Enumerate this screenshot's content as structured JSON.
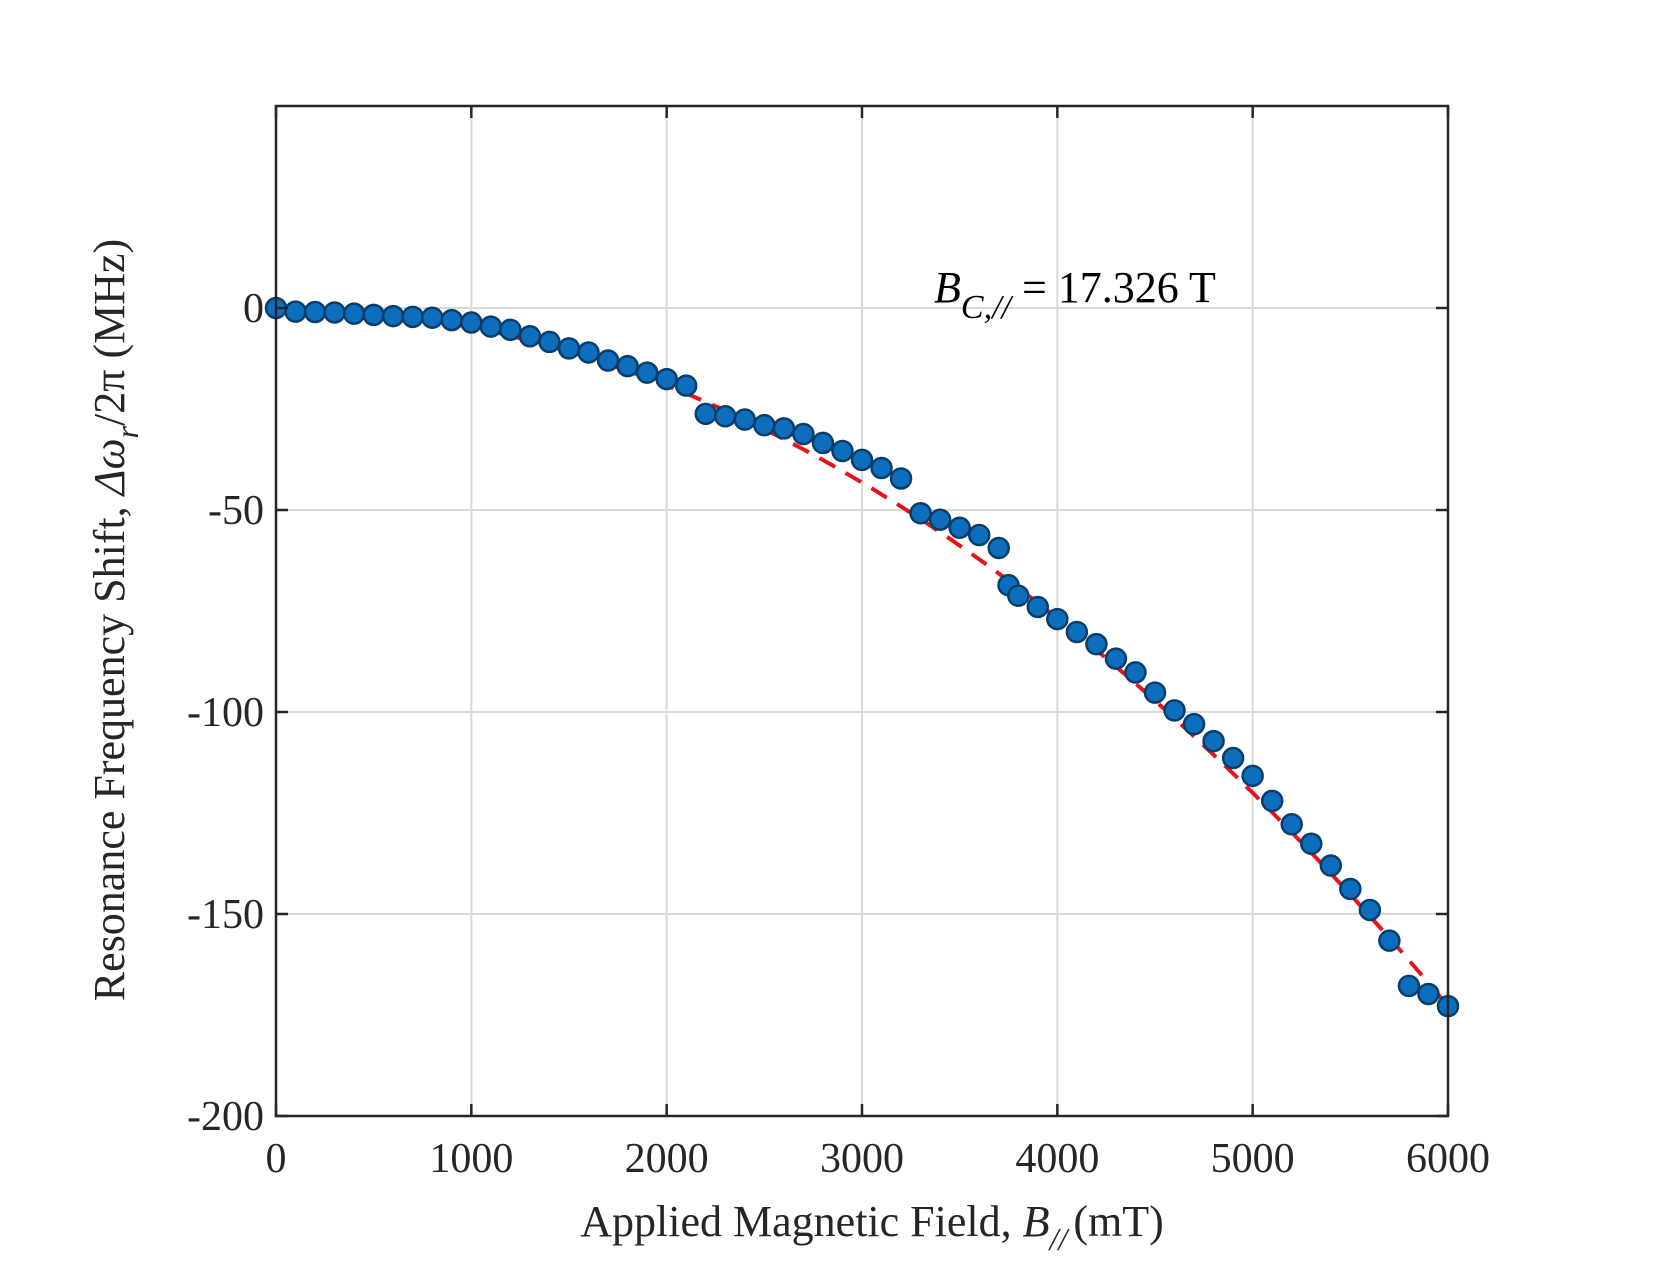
{
  "chart_data": {
    "type": "scatter",
    "xlabel": {
      "text": "Applied Magnetic Field, ",
      "symbol": "B",
      "symbol_sub": "//",
      "unit": "(mT)"
    },
    "ylabel": {
      "text": "Resonance Frequency Shift, ",
      "symbol": "Δω",
      "symbol_sub": "r",
      "suffix": "/2π (MHz)"
    },
    "annotation": {
      "symbol": "B",
      "symbol_sub": "C,//",
      "text": " = 17.326 T"
    },
    "xlim": [
      0,
      6000
    ],
    "ylim": [
      -200,
      50
    ],
    "xticks": [
      0,
      1000,
      2000,
      3000,
      4000,
      5000,
      6000
    ],
    "yticks": [
      0,
      -50,
      -100,
      -150,
      -200
    ],
    "xtick_labels": [
      "0",
      "1000",
      "2000",
      "3000",
      "4000",
      "5000",
      "6000"
    ],
    "ytick_labels": [
      "0",
      "-50",
      "-100",
      "-150",
      "-200"
    ],
    "grid": true,
    "colors": {
      "marker_fill": "#0c6ebd",
      "marker_edge": "#0b3d6b",
      "fit_line": "#e8141b",
      "axes": "#262626",
      "grid": "#d9d9d9"
    },
    "series": [
      {
        "kind": "markers",
        "x": [
          0,
          100,
          200,
          300,
          400,
          500,
          600,
          700,
          800,
          900,
          1000,
          1100,
          1200,
          1300,
          1400,
          1500,
          1600,
          1700,
          1800,
          1900,
          2000,
          2100,
          2200,
          2300,
          2400,
          2500,
          2600,
          2700,
          2800,
          2900,
          3000,
          3100,
          3200,
          3300,
          3400,
          3500,
          3600,
          3700,
          3750,
          3800,
          3900,
          4000,
          4100,
          4200,
          4300,
          4400,
          4500,
          4600,
          4700,
          4800,
          4900,
          5000,
          5100,
          5200,
          5300,
          5400,
          5500,
          5600,
          5700,
          5800,
          5900,
          6000
        ],
        "y": [
          0,
          -0.9,
          -1.0,
          -1.1,
          -1.4,
          -1.7,
          -2.0,
          -2.2,
          -2.4,
          -3.0,
          -3.6,
          -4.6,
          -5.4,
          -7.0,
          -8.4,
          -10.0,
          -11.0,
          -13.0,
          -14.4,
          -16.0,
          -17.6,
          -19.2,
          -26.2,
          -26.8,
          -27.6,
          -29.0,
          -29.8,
          -31.2,
          -33.4,
          -35.4,
          -37.6,
          -39.6,
          -42.2,
          -50.8,
          -52.4,
          -54.4,
          -56.2,
          -59.4,
          -68.6,
          -71.2,
          -74.0,
          -77.0,
          -80.2,
          -83.2,
          -86.8,
          -90.2,
          -95.2,
          -99.6,
          -103.0,
          -107.2,
          -111.4,
          -115.8,
          -122.0,
          -127.8,
          -132.6,
          -138.0,
          -143.8,
          -149.0,
          -156.6,
          -167.8,
          -169.8,
          -172.8
        ]
      },
      {
        "kind": "fit",
        "style": "dashed",
        "x": [
          0,
          6000
        ],
        "formula": "y = -172.8 * (x/6000)^2"
      }
    ]
  }
}
